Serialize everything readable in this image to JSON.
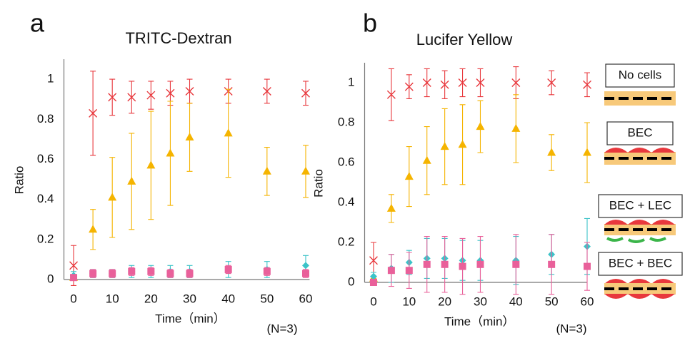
{
  "chart_data": [
    {
      "type": "scatter",
      "panel": "a",
      "title": "TRITC-Dextran",
      "x_label": "Time（min）",
      "y_label": "Ratio",
      "note": "(N=3)",
      "x": [
        0,
        5,
        10,
        15,
        20,
        25,
        30,
        40,
        50,
        60
      ],
      "xlim": [
        -2.5,
        61
      ],
      "xticks": [
        0,
        10,
        20,
        30,
        40,
        50,
        60
      ],
      "ylim": [
        0,
        1.1
      ],
      "yticks": [
        0,
        0.2,
        0.4,
        0.6,
        0.8,
        1
      ],
      "grid": false,
      "series": [
        {
          "color": "#e8383d",
          "marker": "x",
          "values": [
            0.07,
            0.83,
            0.91,
            0.91,
            0.92,
            0.93,
            0.94,
            0.94,
            0.94,
            0.93
          ],
          "errors": [
            0.1,
            0.21,
            0.09,
            0.08,
            0.07,
            0.06,
            0.06,
            0.06,
            0.06,
            0.06
          ]
        },
        {
          "color": "#f5b400",
          "marker": "triangle",
          "values": [
            0.01,
            0.25,
            0.41,
            0.49,
            0.57,
            0.63,
            0.71,
            0.73,
            0.54,
            0.54
          ],
          "errors": [
            0.01,
            0.1,
            0.2,
            0.24,
            0.27,
            0.26,
            0.17,
            0.22,
            0.12,
            0.13
          ]
        },
        {
          "color": "#3cc3c8",
          "marker": "diamond",
          "values": [
            0.02,
            0.03,
            0.03,
            0.04,
            0.04,
            0.04,
            0.04,
            0.05,
            0.05,
            0.07
          ],
          "errors": [
            0.02,
            0.02,
            0.02,
            0.03,
            0.03,
            0.03,
            0.03,
            0.04,
            0.04,
            0.05
          ]
        },
        {
          "color": "#e9609a",
          "marker": "square",
          "values": [
            0.01,
            0.03,
            0.03,
            0.04,
            0.04,
            0.03,
            0.03,
            0.05,
            0.04,
            0.03
          ],
          "errors": [
            0.01,
            0.02,
            0.02,
            0.02,
            0.02,
            0.02,
            0.02,
            0.02,
            0.02,
            0.02
          ]
        }
      ]
    },
    {
      "type": "scatter",
      "panel": "b",
      "title": "Lucifer Yellow",
      "x_label": "Time（min）",
      "y_label": "Ratio",
      "note": "(N=3)",
      "x": [
        0,
        5,
        10,
        15,
        20,
        25,
        30,
        40,
        50,
        60
      ],
      "xlim": [
        -2.5,
        60
      ],
      "xticks": [
        0,
        10,
        20,
        30,
        40,
        50,
        60
      ],
      "ylim": [
        0,
        1.1
      ],
      "yticks": [
        0,
        0.2,
        0.4,
        0.6,
        0.8,
        1
      ],
      "grid": false,
      "series": [
        {
          "name": "No cells",
          "color": "#e8383d",
          "marker": "x",
          "values": [
            0.11,
            0.94,
            0.98,
            1.0,
            0.99,
            1.0,
            1.0,
            1.0,
            1.0,
            0.99
          ],
          "errors": [
            0.09,
            0.13,
            0.06,
            0.07,
            0.07,
            0.07,
            0.07,
            0.08,
            0.06,
            0.06
          ]
        },
        {
          "name": "BEC",
          "color": "#f5b400",
          "marker": "triangle",
          "values": [
            0.02,
            0.37,
            0.53,
            0.61,
            0.68,
            0.69,
            0.78,
            0.77,
            0.65,
            0.65
          ],
          "errors": [
            0.01,
            0.07,
            0.15,
            0.17,
            0.19,
            0.2,
            0.13,
            0.17,
            0.09,
            0.15
          ]
        },
        {
          "name": "BEC + LEC",
          "color": "#3cc3c8",
          "marker": "diamond",
          "values": [
            0.03,
            0.07,
            0.1,
            0.12,
            0.12,
            0.11,
            0.11,
            0.11,
            0.14,
            0.18
          ],
          "errors": [
            0.02,
            0.07,
            0.06,
            0.1,
            0.1,
            0.1,
            0.1,
            0.12,
            0.1,
            0.14
          ]
        },
        {
          "name": "BEC + BEC",
          "color": "#e9609a",
          "marker": "square",
          "values": [
            0.0,
            0.06,
            0.06,
            0.09,
            0.09,
            0.08,
            0.09,
            0.09,
            0.09,
            0.08
          ],
          "errors": [
            0.01,
            0.08,
            0.09,
            0.14,
            0.14,
            0.14,
            0.14,
            0.15,
            0.15,
            0.12
          ]
        }
      ]
    }
  ]
}
